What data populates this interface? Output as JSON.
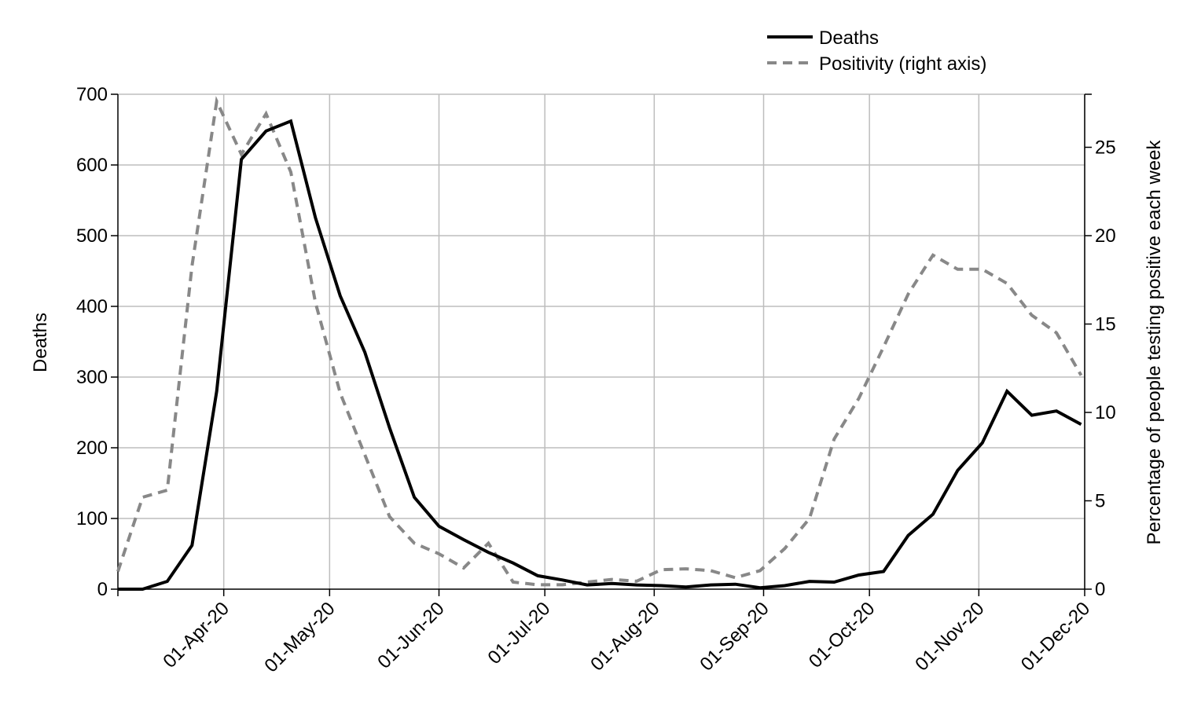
{
  "chart_data": {
    "type": "line",
    "title": "",
    "ylabel": "Deaths",
    "y2label": "Percentage of people testing positive each week",
    "ylim": [
      0,
      700
    ],
    "yticks": [
      0,
      100,
      200,
      300,
      400,
      500,
      600,
      700
    ],
    "y2lim": [
      0,
      28
    ],
    "y2ticks": [
      0,
      5,
      10,
      15,
      20,
      25
    ],
    "xlim": [
      "2020-03-02",
      "2020-12-01"
    ],
    "xticks": [
      {
        "date": "2020-04-01",
        "label": "01-Apr-20"
      },
      {
        "date": "2020-05-01",
        "label": "01-May-20"
      },
      {
        "date": "2020-06-01",
        "label": "01-Jun-20"
      },
      {
        "date": "2020-07-01",
        "label": "01-Jul-20"
      },
      {
        "date": "2020-08-01",
        "label": "01-Aug-20"
      },
      {
        "date": "2020-09-01",
        "label": "01-Sep-20"
      },
      {
        "date": "2020-10-01",
        "label": "01-Oct-20"
      },
      {
        "date": "2020-11-01",
        "label": "01-Nov-20"
      },
      {
        "date": "2020-12-01",
        "label": "01-Dec-20"
      }
    ],
    "grid": true,
    "legend_position": "top-right",
    "legend": [
      "Deaths",
      "Positivity (right axis)"
    ],
    "series": [
      {
        "name": "Deaths",
        "axis": "left",
        "color": "#000000",
        "dash": "solid",
        "points": [
          [
            "2020-03-02",
            0
          ],
          [
            "2020-03-09",
            0
          ],
          [
            "2020-03-16",
            11
          ],
          [
            "2020-03-23",
            62
          ],
          [
            "2020-03-30",
            280
          ],
          [
            "2020-04-06",
            608
          ],
          [
            "2020-04-13",
            648
          ],
          [
            "2020-04-20",
            662
          ],
          [
            "2020-04-27",
            525
          ],
          [
            "2020-05-04",
            415
          ],
          [
            "2020-05-11",
            335
          ],
          [
            "2020-05-18",
            228
          ],
          [
            "2020-05-25",
            130
          ],
          [
            "2020-06-01",
            89
          ],
          [
            "2020-06-08",
            70
          ],
          [
            "2020-06-15",
            52
          ],
          [
            "2020-06-22",
            37
          ],
          [
            "2020-06-29",
            19
          ],
          [
            "2020-07-06",
            13
          ],
          [
            "2020-07-13",
            6
          ],
          [
            "2020-07-20",
            8
          ],
          [
            "2020-07-27",
            6
          ],
          [
            "2020-08-03",
            5
          ],
          [
            "2020-08-10",
            3
          ],
          [
            "2020-08-17",
            6
          ],
          [
            "2020-08-24",
            7
          ],
          [
            "2020-08-31",
            2
          ],
          [
            "2020-09-07",
            5
          ],
          [
            "2020-09-14",
            11
          ],
          [
            "2020-09-21",
            10
          ],
          [
            "2020-09-28",
            20
          ],
          [
            "2020-10-05",
            25
          ],
          [
            "2020-10-12",
            76
          ],
          [
            "2020-10-19",
            106
          ],
          [
            "2020-10-26",
            168
          ],
          [
            "2020-11-02",
            207
          ],
          [
            "2020-11-09",
            280
          ],
          [
            "2020-11-16",
            246
          ],
          [
            "2020-11-23",
            252
          ],
          [
            "2020-11-30",
            233
          ]
        ]
      },
      {
        "name": "Positivity (right axis)",
        "axis": "right",
        "color": "#888888",
        "dash": "dashed",
        "points": [
          [
            "2020-03-02",
            1.0
          ],
          [
            "2020-03-09",
            5.2
          ],
          [
            "2020-03-16",
            5.6
          ],
          [
            "2020-03-23",
            18.3
          ],
          [
            "2020-03-30",
            27.6
          ],
          [
            "2020-04-06",
            24.6
          ],
          [
            "2020-04-13",
            26.9
          ],
          [
            "2020-04-20",
            23.6
          ],
          [
            "2020-04-27",
            16.2
          ],
          [
            "2020-05-04",
            11.1
          ],
          [
            "2020-05-11",
            7.6
          ],
          [
            "2020-05-18",
            4.1
          ],
          [
            "2020-05-25",
            2.6
          ],
          [
            "2020-06-01",
            2.0
          ],
          [
            "2020-06-08",
            1.2
          ],
          [
            "2020-06-15",
            2.6
          ],
          [
            "2020-06-22",
            0.4
          ],
          [
            "2020-06-29",
            0.25
          ],
          [
            "2020-07-06",
            0.25
          ],
          [
            "2020-07-13",
            0.4
          ],
          [
            "2020-07-20",
            0.55
          ],
          [
            "2020-07-27",
            0.45
          ],
          [
            "2020-08-03",
            1.1
          ],
          [
            "2020-08-10",
            1.15
          ],
          [
            "2020-08-17",
            1.05
          ],
          [
            "2020-08-24",
            0.65
          ],
          [
            "2020-08-31",
            1.05
          ],
          [
            "2020-09-07",
            2.3
          ],
          [
            "2020-09-14",
            4.0
          ],
          [
            "2020-09-21",
            8.5
          ],
          [
            "2020-09-28",
            10.8
          ],
          [
            "2020-10-05",
            13.7
          ],
          [
            "2020-10-12",
            16.7
          ],
          [
            "2020-10-19",
            18.9
          ],
          [
            "2020-10-26",
            18.1
          ],
          [
            "2020-11-02",
            18.1
          ],
          [
            "2020-11-09",
            17.3
          ],
          [
            "2020-11-16",
            15.5
          ],
          [
            "2020-11-23",
            14.5
          ],
          [
            "2020-11-30",
            12.1
          ]
        ]
      }
    ]
  }
}
